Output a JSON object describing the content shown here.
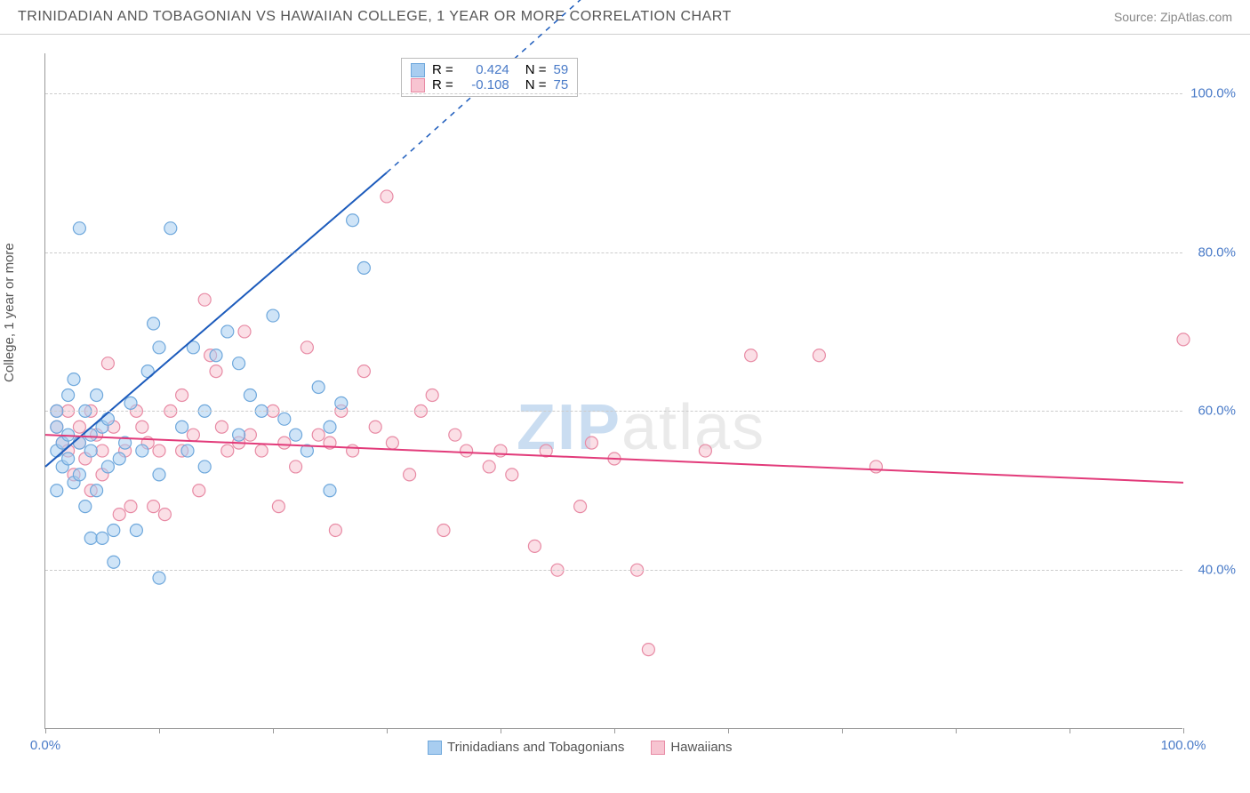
{
  "header": {
    "title": "TRINIDADIAN AND TOBAGONIAN VS HAWAIIAN COLLEGE, 1 YEAR OR MORE CORRELATION CHART",
    "source": "Source: ZipAtlas.com"
  },
  "chart": {
    "type": "scatter",
    "ylabel": "College, 1 year or more",
    "xlim": [
      0,
      100
    ],
    "ylim": [
      20,
      105
    ],
    "ytick_positions": [
      40,
      60,
      80,
      100
    ],
    "ytick_labels": [
      "40.0%",
      "60.0%",
      "80.0%",
      "100.0%"
    ],
    "ytick_color": "#4a7bc8",
    "xtick_positions": [
      0,
      10,
      20,
      30,
      40,
      50,
      60,
      70,
      80,
      90,
      100
    ],
    "xtick_end_labels": {
      "left": "0.0%",
      "right": "100.0%"
    },
    "xtick_label_color": "#4a7bc8",
    "grid_color": "#cccccc",
    "background_color": "#ffffff",
    "marker_radius": 7,
    "marker_stroke_width": 1.2,
    "series": {
      "trinidadian": {
        "label": "Trinidadians and Tobagonians",
        "fill": "#a8cdf0",
        "stroke": "#6fa8dc",
        "fill_opacity": 0.55,
        "r_value": "0.424",
        "n_value": "59",
        "points": [
          [
            1,
            55
          ],
          [
            1,
            58
          ],
          [
            1,
            60
          ],
          [
            1.5,
            56
          ],
          [
            1.5,
            53
          ],
          [
            2,
            54
          ],
          [
            2,
            57
          ],
          [
            2,
            62
          ],
          [
            2.5,
            51
          ],
          [
            2.5,
            64
          ],
          [
            3,
            83
          ],
          [
            3,
            56
          ],
          [
            3,
            52
          ],
          [
            3.5,
            60
          ],
          [
            3.5,
            48
          ],
          [
            4,
            57
          ],
          [
            4,
            55
          ],
          [
            4,
            44
          ],
          [
            4.5,
            62
          ],
          [
            4.5,
            50
          ],
          [
            5,
            44
          ],
          [
            5,
            58
          ],
          [
            5.5,
            53
          ],
          [
            5.5,
            59
          ],
          [
            6,
            41
          ],
          [
            6,
            45
          ],
          [
            6.5,
            54
          ],
          [
            7,
            56
          ],
          [
            7.5,
            61
          ],
          [
            8,
            45
          ],
          [
            8.5,
            55
          ],
          [
            9,
            65
          ],
          [
            9.5,
            71
          ],
          [
            10,
            68
          ],
          [
            10,
            39
          ],
          [
            11,
            83
          ],
          [
            12,
            58
          ],
          [
            12.5,
            55
          ],
          [
            13,
            68
          ],
          [
            14,
            60
          ],
          [
            15,
            67
          ],
          [
            16,
            70
          ],
          [
            17,
            57
          ],
          [
            18,
            62
          ],
          [
            19,
            60
          ],
          [
            20,
            72
          ],
          [
            21,
            59
          ],
          [
            22,
            57
          ],
          [
            23,
            55
          ],
          [
            24,
            63
          ],
          [
            25,
            58
          ],
          [
            26,
            61
          ],
          [
            27,
            84
          ],
          [
            28,
            78
          ],
          [
            25,
            50
          ],
          [
            17,
            66
          ],
          [
            14,
            53
          ],
          [
            10,
            52
          ],
          [
            1,
            50
          ]
        ],
        "regression": {
          "x1": 0,
          "y1": 53,
          "x2": 30,
          "y2": 90,
          "x2_ext": 48,
          "y2_ext": 113,
          "color": "#1c5bbc",
          "width": 2
        }
      },
      "hawaiian": {
        "label": "Hawaiians",
        "fill": "#f7c4d1",
        "stroke": "#e88ba5",
        "fill_opacity": 0.55,
        "r_value": "-0.108",
        "n_value": "75",
        "points": [
          [
            1,
            58
          ],
          [
            1,
            60
          ],
          [
            1.5,
            56
          ],
          [
            2,
            60
          ],
          [
            2,
            55
          ],
          [
            2.5,
            52
          ],
          [
            3,
            58
          ],
          [
            3,
            56
          ],
          [
            3.5,
            54
          ],
          [
            4,
            60
          ],
          [
            4,
            50
          ],
          [
            4.5,
            57
          ],
          [
            5,
            55
          ],
          [
            5,
            52
          ],
          [
            5.5,
            66
          ],
          [
            6,
            58
          ],
          [
            6.5,
            47
          ],
          [
            7,
            55
          ],
          [
            7.5,
            48
          ],
          [
            8,
            60
          ],
          [
            8.5,
            58
          ],
          [
            9,
            56
          ],
          [
            9.5,
            48
          ],
          [
            10,
            55
          ],
          [
            10.5,
            47
          ],
          [
            11,
            60
          ],
          [
            12,
            55
          ],
          [
            12,
            62
          ],
          [
            13,
            57
          ],
          [
            13.5,
            50
          ],
          [
            14,
            74
          ],
          [
            14.5,
            67
          ],
          [
            15,
            65
          ],
          [
            15.5,
            58
          ],
          [
            16,
            55
          ],
          [
            17,
            56
          ],
          [
            17.5,
            70
          ],
          [
            18,
            57
          ],
          [
            19,
            55
          ],
          [
            20,
            60
          ],
          [
            20.5,
            48
          ],
          [
            21,
            56
          ],
          [
            22,
            53
          ],
          [
            23,
            68
          ],
          [
            24,
            57
          ],
          [
            25,
            56
          ],
          [
            25.5,
            45
          ],
          [
            26,
            60
          ],
          [
            27,
            55
          ],
          [
            28,
            65
          ],
          [
            29,
            58
          ],
          [
            30,
            87
          ],
          [
            30.5,
            56
          ],
          [
            32,
            52
          ],
          [
            33,
            60
          ],
          [
            34,
            62
          ],
          [
            35,
            45
          ],
          [
            36,
            57
          ],
          [
            37,
            55
          ],
          [
            39,
            53
          ],
          [
            40,
            55
          ],
          [
            41,
            52
          ],
          [
            43,
            43
          ],
          [
            44,
            55
          ],
          [
            45,
            40
          ],
          [
            47,
            48
          ],
          [
            48,
            56
          ],
          [
            50,
            54
          ],
          [
            52,
            40
          ],
          [
            53,
            30
          ],
          [
            58,
            55
          ],
          [
            62,
            67
          ],
          [
            68,
            67
          ],
          [
            73,
            53
          ],
          [
            100,
            69
          ]
        ],
        "regression": {
          "x1": 0,
          "y1": 57,
          "x2": 100,
          "y2": 51,
          "color": "#e23b7a",
          "width": 2
        }
      }
    },
    "corr_box": {
      "r_label": "R =",
      "n_label": "N =",
      "value_color": "#4a7bc8"
    },
    "watermark": {
      "zip": "ZIP",
      "atlas": "atlas"
    }
  }
}
